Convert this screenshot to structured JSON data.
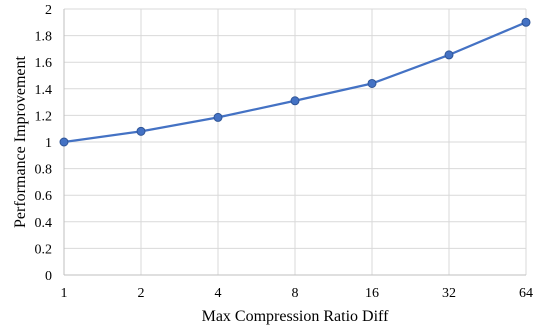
{
  "chart_data": {
    "type": "line",
    "title": "",
    "xlabel": "Max Compression Ratio Diff",
    "ylabel": "Performance Improvement",
    "categories": [
      "1",
      "2",
      "4",
      "8",
      "16",
      "32",
      "64"
    ],
    "series": [
      {
        "values": [
          1.0,
          1.08,
          1.185,
          1.31,
          1.44,
          1.655,
          1.9
        ]
      }
    ],
    "ylim": [
      0,
      2
    ],
    "yticks": [
      "0",
      "0.2",
      "0.4",
      "0.6",
      "0.8",
      "1",
      "1.2",
      "1.4",
      "1.6",
      "1.8",
      "2"
    ],
    "grid": true,
    "legend": "none",
    "colors": {
      "line": "#4472C4",
      "marker_fill": "#4472C4",
      "marker_stroke": "#2F5597",
      "grid": "#D9D9D9",
      "axis": "#BFBFBF"
    }
  }
}
